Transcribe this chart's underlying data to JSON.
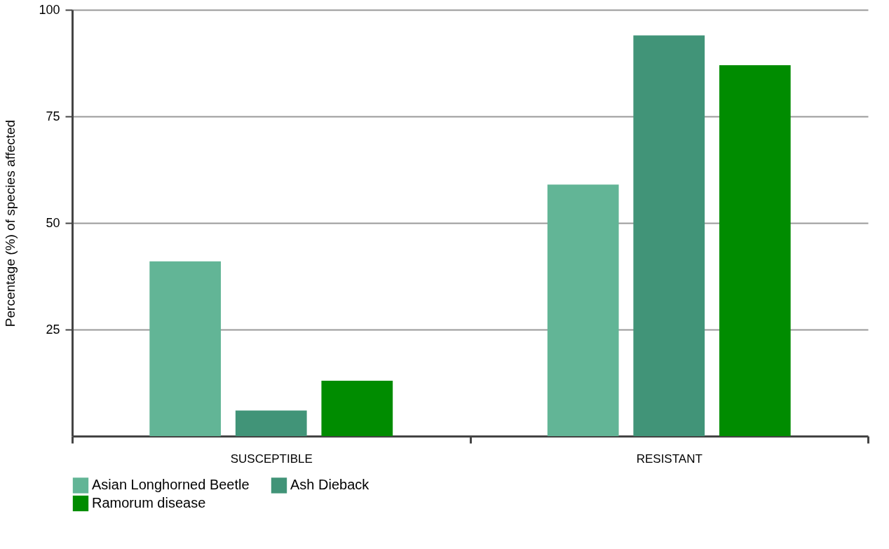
{
  "chart_data": {
    "type": "bar",
    "ylabel": "Percentage (%) of species affected",
    "categories": [
      "SUSCEPTIBLE",
      "RESISTANT"
    ],
    "series": [
      {
        "name": "Asian Longhorned Beetle",
        "color": "#62b596",
        "values": [
          41,
          59
        ]
      },
      {
        "name": "Ash Dieback",
        "color": "#419478",
        "values": [
          6,
          94
        ]
      },
      {
        "name": "Ramorum disease",
        "color": "#008c00",
        "values": [
          13,
          87
        ]
      }
    ],
    "ylim": [
      0,
      100
    ],
    "yticks": [
      25,
      50,
      75,
      100
    ],
    "grid": "y",
    "legend": "bottom"
  }
}
